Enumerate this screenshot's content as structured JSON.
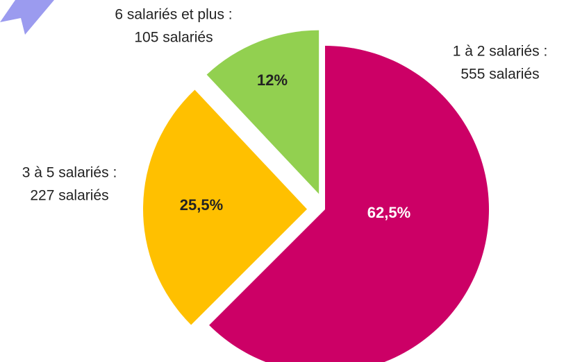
{
  "chart_data": {
    "type": "pie",
    "categories": [
      "1 à 2 salariés :",
      "3 à 5 salariés :",
      "6 salariés et plus :"
    ],
    "count_labels": [
      "555 salariés",
      "227 salariés",
      "105 salariés"
    ],
    "values": [
      62.5,
      25.5,
      12
    ],
    "value_labels": [
      "62,5%",
      "25,5%",
      "12%"
    ],
    "colors": [
      "#cc0066",
      "#ffc000",
      "#92d050"
    ]
  }
}
